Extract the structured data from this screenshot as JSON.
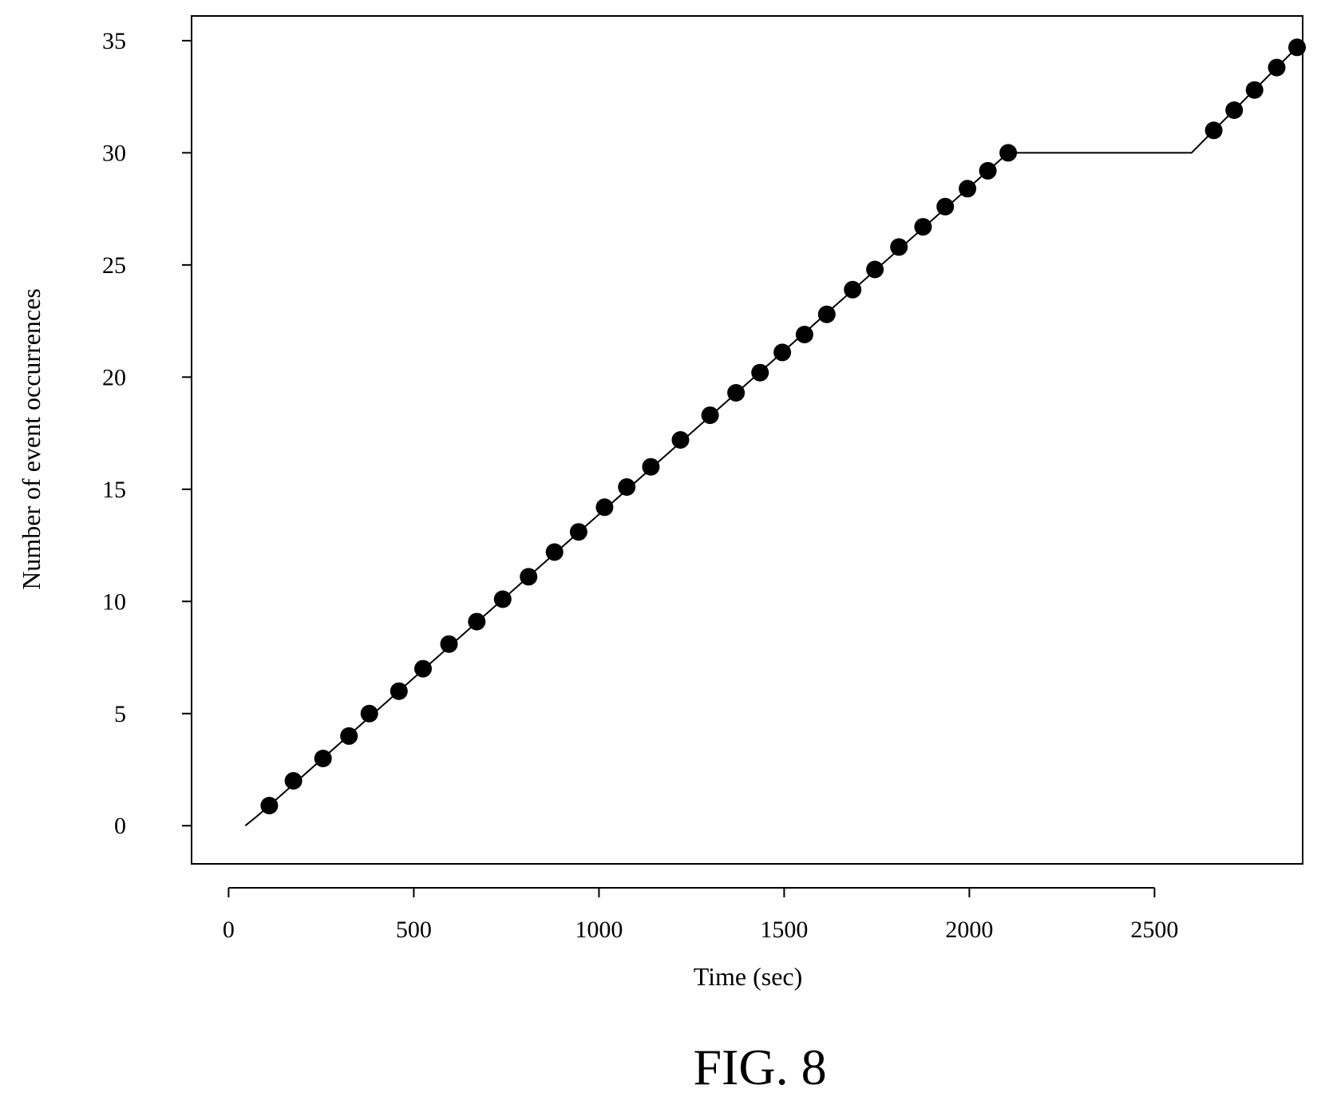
{
  "caption": "FIG. 8",
  "chart_data": {
    "type": "scatter",
    "xlabel": "Time (sec)",
    "ylabel": "Number of event occurrences",
    "xlim": [
      -100,
      2900
    ],
    "ylim": [
      -1.7,
      36.1
    ],
    "xticks": [
      0,
      500,
      1000,
      1500,
      2000,
      2500
    ],
    "yticks": [
      0,
      5,
      10,
      15,
      20,
      25,
      30,
      35
    ],
    "grid": false,
    "legend": "none",
    "series": [
      {
        "kind": "points",
        "x": [
          110,
          175,
          255,
          325,
          380,
          460,
          525,
          595,
          670,
          740,
          810,
          880,
          945,
          1015,
          1075,
          1140,
          1220,
          1300,
          1370,
          1435,
          1495,
          1555,
          1615,
          1685,
          1745,
          1810,
          1875,
          1935,
          1995,
          2050,
          2105,
          2660,
          2715,
          2770,
          2830,
          2885
        ],
        "y": [
          0.9,
          2.0,
          3.0,
          4.0,
          5.0,
          6.0,
          7.0,
          8.1,
          9.1,
          10.1,
          11.1,
          12.2,
          13.1,
          14.2,
          15.1,
          16.0,
          17.2,
          18.3,
          19.3,
          20.2,
          21.1,
          21.9,
          22.8,
          23.9,
          24.8,
          25.8,
          26.7,
          27.6,
          28.4,
          29.2,
          30.0,
          31.0,
          31.9,
          32.8,
          33.8,
          34.7
        ]
      },
      {
        "kind": "line",
        "x": [
          45,
          75,
          110,
          2105,
          2150,
          2600,
          2660,
          2885
        ],
        "y": [
          0.0,
          0.4,
          0.9,
          30.0,
          30.0,
          30.0,
          31.0,
          34.7
        ]
      }
    ]
  }
}
